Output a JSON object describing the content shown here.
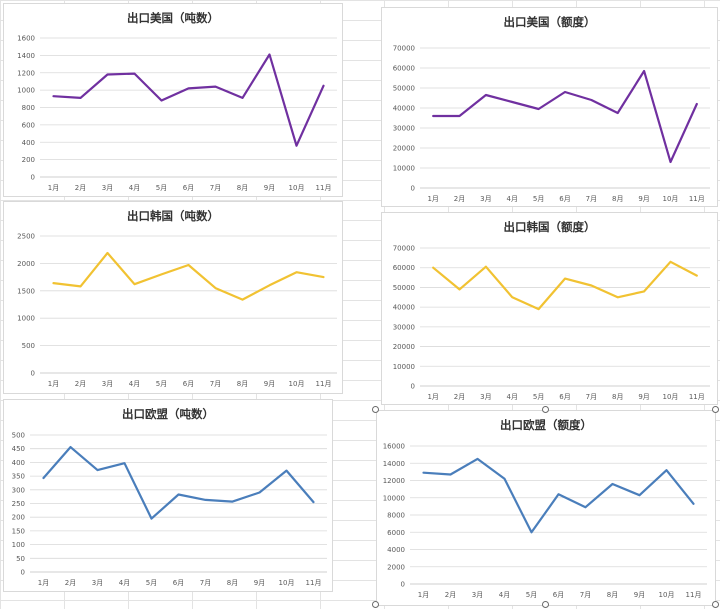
{
  "chart_data": [
    {
      "type": "line",
      "title": "出口美国（吨数）",
      "categories": [
        "1月",
        "2月",
        "3月",
        "4月",
        "5月",
        "6月",
        "7月",
        "8月",
        "9月",
        "10月",
        "11月"
      ],
      "series": [
        {
          "values": [
            930,
            910,
            1180,
            1190,
            880,
            1020,
            1040,
            910,
            1410,
            360,
            1050
          ]
        }
      ],
      "ylim": [
        0,
        1600
      ],
      "yticks": [
        "0",
        "200",
        "400",
        "600",
        "800",
        "1000",
        "1200",
        "1400",
        "1600"
      ],
      "color": "#7030a0",
      "grid": true
    },
    {
      "type": "line",
      "title": "出口美国（额度）",
      "categories": [
        "1月",
        "2月",
        "3月",
        "4月",
        "5月",
        "6月",
        "7月",
        "8月",
        "9月",
        "10月",
        "11月"
      ],
      "series": [
        {
          "values": [
            36000,
            36000,
            46500,
            43000,
            39500,
            48000,
            44000,
            37500,
            58500,
            13000,
            42000
          ]
        }
      ],
      "ylim": [
        0,
        70000
      ],
      "yticks": [
        "0",
        "10000",
        "20000",
        "30000",
        "40000",
        "50000",
        "60000",
        "70000"
      ],
      "color": "#7030a0",
      "grid": true
    },
    {
      "type": "line",
      "title": "出口韩国（吨数）",
      "categories": [
        "1月",
        "2月",
        "3月",
        "4月",
        "5月",
        "6月",
        "7月",
        "8月",
        "9月",
        "10月",
        "11月"
      ],
      "series": [
        {
          "values": [
            1640,
            1580,
            2190,
            1620,
            1800,
            1970,
            1550,
            1340,
            1600,
            1840,
            1750
          ]
        }
      ],
      "ylim": [
        0,
        2500
      ],
      "yticks": [
        "0",
        "500",
        "1000",
        "1500",
        "2000",
        "2500"
      ],
      "color": "#f1c232",
      "grid": true
    },
    {
      "type": "line",
      "title": "出口韩国（额度）",
      "categories": [
        "1月",
        "2月",
        "3月",
        "4月",
        "5月",
        "6月",
        "7月",
        "8月",
        "9月",
        "10月",
        "11月"
      ],
      "series": [
        {
          "values": [
            60000,
            49000,
            60500,
            45000,
            39000,
            54500,
            51000,
            45000,
            48000,
            63000,
            56000
          ]
        }
      ],
      "ylim": [
        0,
        70000
      ],
      "yticks": [
        "0",
        "10000",
        "20000",
        "30000",
        "40000",
        "50000",
        "60000",
        "70000"
      ],
      "color": "#f1c232",
      "grid": true
    },
    {
      "type": "line",
      "title": "出口欧盟（吨数）",
      "categories": [
        "1月",
        "2月",
        "3月",
        "4月",
        "5月",
        "6月",
        "7月",
        "8月",
        "9月",
        "10月",
        "11月"
      ],
      "series": [
        {
          "values": [
            343,
            456,
            372,
            397,
            195,
            283,
            263,
            257,
            290,
            370,
            255
          ]
        }
      ],
      "ylim": [
        0,
        500
      ],
      "yticks": [
        "0",
        "50",
        "100",
        "150",
        "200",
        "250",
        "300",
        "350",
        "400",
        "450",
        "500"
      ],
      "color": "#4a7ebb",
      "grid": true
    },
    {
      "type": "line",
      "title": "出口欧盟（额度）",
      "categories": [
        "1月",
        "2月",
        "3月",
        "4月",
        "5月",
        "6月",
        "7月",
        "8月",
        "9月",
        "10月",
        "11月"
      ],
      "series": [
        {
          "values": [
            12900,
            12700,
            14500,
            12200,
            6000,
            10400,
            8900,
            11600,
            10300,
            13200,
            9300
          ]
        }
      ],
      "ylim": [
        0,
        16000
      ],
      "yticks": [
        "0",
        "2000",
        "4000",
        "6000",
        "8000",
        "10000",
        "12000",
        "14000",
        "16000"
      ],
      "color": "#4a7ebb",
      "grid": true
    }
  ]
}
